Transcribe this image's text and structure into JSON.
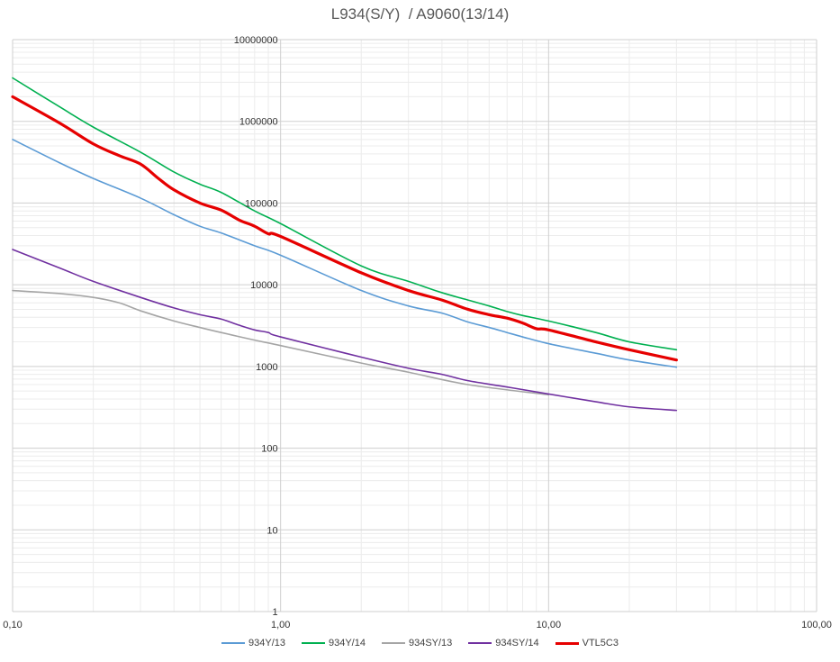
{
  "chart_data": {
    "type": "line",
    "title": "L934(S/Y)  / A9060(13/14)",
    "x_scale": "log",
    "y_scale": "log",
    "xlim": [
      0.1,
      100
    ],
    "ylim": [
      1,
      10000000
    ],
    "x_ticks": [
      0.1,
      1,
      10,
      100
    ],
    "x_tick_labels": [
      "0,10",
      "1,00",
      "10,00",
      "100,00"
    ],
    "y_ticks": [
      1,
      10,
      100,
      1000,
      10000,
      100000,
      1000000,
      10000000
    ],
    "y_tick_labels": [
      "1",
      "10",
      "100",
      "1000",
      "10000",
      "100000",
      "1000000",
      "10000000"
    ],
    "grid": true,
    "legend_position": "bottom",
    "series": [
      {
        "name": "934Y/13",
        "color": "#5B9BD5",
        "width": 1.6,
        "x": [
          0.1,
          0.15,
          0.2,
          0.3,
          0.4,
          0.5,
          0.6,
          0.8,
          1,
          2,
          3,
          4,
          5,
          6,
          7,
          8,
          10,
          15,
          20,
          30
        ],
        "y": [
          600000,
          310000,
          200000,
          115000,
          72000,
          52000,
          43000,
          30000,
          23000,
          8500,
          5500,
          4500,
          3500,
          3000,
          2600,
          2300,
          1900,
          1450,
          1200,
          980
        ]
      },
      {
        "name": "934Y/14",
        "color": "#00B050",
        "width": 1.6,
        "x": [
          0.1,
          0.15,
          0.2,
          0.3,
          0.4,
          0.5,
          0.6,
          0.8,
          1,
          2,
          3,
          4,
          5,
          6,
          7,
          8,
          10,
          15,
          20,
          30
        ],
        "y": [
          3400000,
          1500000,
          850000,
          420000,
          240000,
          170000,
          135000,
          80000,
          56000,
          17000,
          11000,
          8000,
          6500,
          5500,
          4700,
          4200,
          3600,
          2600,
          2000,
          1600
        ]
      },
      {
        "name": "934SY/13",
        "color": "#A5A5A5",
        "width": 1.6,
        "x": [
          0.1,
          0.15,
          0.2,
          0.25,
          0.3,
          0.4,
          0.5,
          0.6,
          0.8,
          1,
          2,
          3,
          5,
          10
        ],
        "y": [
          8500,
          7800,
          7000,
          6000,
          4800,
          3600,
          3000,
          2600,
          2100,
          1800,
          1100,
          850,
          600,
          450
        ]
      },
      {
        "name": "934SY/14",
        "color": "#7030A0",
        "width": 1.6,
        "x": [
          0.1,
          0.15,
          0.2,
          0.3,
          0.4,
          0.5,
          0.6,
          0.7,
          0.8,
          0.9,
          1,
          2,
          3,
          4,
          5,
          7,
          10,
          15,
          20,
          30
        ],
        "y": [
          27000,
          16000,
          11000,
          7000,
          5200,
          4300,
          3800,
          3200,
          2800,
          2600,
          2300,
          1300,
          950,
          800,
          670,
          560,
          460,
          370,
          320,
          290
        ]
      },
      {
        "name": "VTL5C3",
        "color": "#E60000",
        "width": 3.2,
        "x": [
          0.1,
          0.15,
          0.2,
          0.25,
          0.3,
          0.35,
          0.4,
          0.5,
          0.6,
          0.7,
          0.8,
          0.9,
          1,
          2,
          3,
          4,
          5,
          6,
          7,
          8,
          9,
          10,
          15,
          20,
          30
        ],
        "y": [
          2000000,
          950000,
          530000,
          380000,
          300000,
          200000,
          145000,
          100000,
          82000,
          62000,
          52000,
          42000,
          39000,
          14000,
          8500,
          6500,
          5000,
          4300,
          3900,
          3400,
          2900,
          2800,
          2000,
          1600,
          1200
        ]
      }
    ]
  }
}
